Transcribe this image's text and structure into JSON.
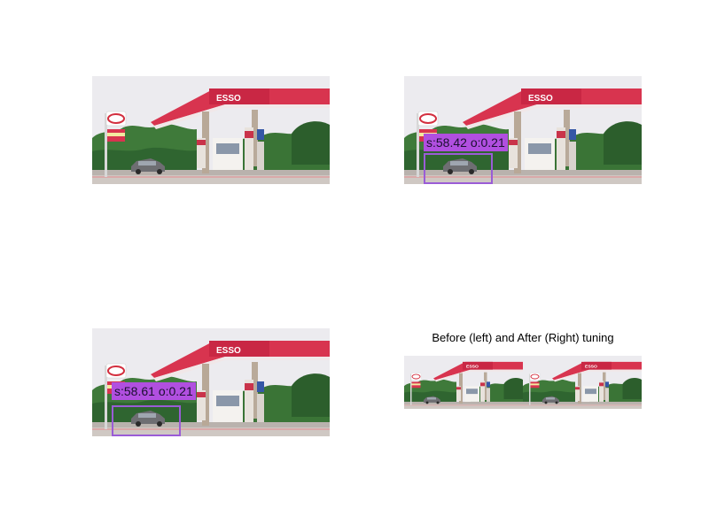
{
  "figure": {
    "background": "#ffffff",
    "panels": [
      {
        "id": "original",
        "detection": null
      },
      {
        "id": "detection-before",
        "detection": {
          "label": "s:58.42 o:0.21",
          "color": "#b14fe0"
        }
      },
      {
        "id": "detection-after",
        "detection": {
          "label": "s:58.61 o:0.21",
          "color": "#b14fe0"
        }
      },
      {
        "id": "comparison",
        "title": "Before (left) and After (Right) tuning"
      }
    ],
    "scene": {
      "station_sign": "ESSO",
      "canopy_color": "#d8344f",
      "sky_color": "#ecebef",
      "tree_color": "#3f7a3a",
      "ground_color": "#b9b2ad"
    }
  }
}
